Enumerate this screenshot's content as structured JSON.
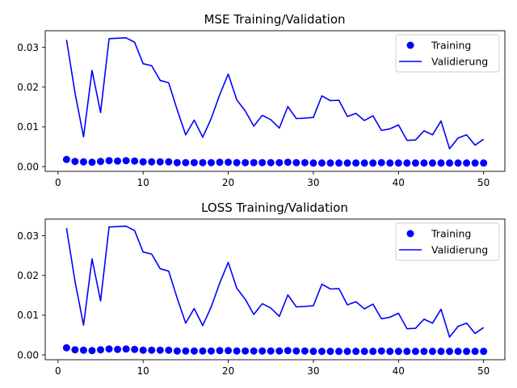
{
  "chart_data": [
    {
      "type": "line",
      "title": "MSE Training/Validation",
      "xlim": [
        -1.5,
        52.5
      ],
      "ylim": [
        -0.0012,
        0.0342
      ],
      "xticks": [
        0,
        10,
        20,
        30,
        40,
        50
      ],
      "yticks": [
        0.0,
        0.01,
        0.02,
        0.03
      ],
      "ytick_labels": [
        "0.00",
        "0.01",
        "0.02",
        "0.03"
      ],
      "legend_position": "top-right",
      "series": [
        {
          "name": "Training",
          "kind": "scatter",
          "color": "#0000ff",
          "x": [
            1,
            2,
            3,
            4,
            5,
            6,
            7,
            8,
            9,
            10,
            11,
            12,
            13,
            14,
            15,
            16,
            17,
            18,
            19,
            20,
            21,
            22,
            23,
            24,
            25,
            26,
            27,
            28,
            29,
            30,
            31,
            32,
            33,
            34,
            35,
            36,
            37,
            38,
            39,
            40,
            41,
            42,
            43,
            44,
            45,
            46,
            47,
            48,
            49,
            50
          ],
          "y": [
            0.0018,
            0.0013,
            0.0012,
            0.0011,
            0.0013,
            0.0015,
            0.0014,
            0.0015,
            0.0014,
            0.0012,
            0.0012,
            0.0012,
            0.0012,
            0.001,
            0.001,
            0.001,
            0.001,
            0.001,
            0.0011,
            0.0011,
            0.001,
            0.001,
            0.001,
            0.001,
            0.001,
            0.001,
            0.0011,
            0.001,
            0.001,
            0.0009,
            0.0009,
            0.0009,
            0.0009,
            0.0009,
            0.0009,
            0.0009,
            0.0009,
            0.001,
            0.0009,
            0.0009,
            0.0009,
            0.0009,
            0.0009,
            0.0009,
            0.0009,
            0.0009,
            0.0009,
            0.0009,
            0.0009,
            0.0009
          ]
        },
        {
          "name": "Validierung",
          "kind": "line",
          "color": "#0000ff",
          "x": [
            1,
            2,
            3,
            4,
            5,
            6,
            7,
            8,
            9,
            10,
            11,
            12,
            13,
            14,
            15,
            16,
            17,
            18,
            19,
            20,
            21,
            22,
            23,
            24,
            25,
            26,
            27,
            28,
            29,
            30,
            31,
            32,
            33,
            34,
            35,
            36,
            37,
            38,
            39,
            40,
            41,
            42,
            43,
            44,
            45,
            46,
            47,
            48,
            49,
            50
          ],
          "y": [
            0.0319,
            0.0185,
            0.0075,
            0.0242,
            0.0136,
            0.0322,
            0.0323,
            0.0324,
            0.0313,
            0.0259,
            0.0254,
            0.0217,
            0.0211,
            0.0143,
            0.008,
            0.0117,
            0.0074,
            0.0121,
            0.0181,
            0.0233,
            0.0168,
            0.014,
            0.0102,
            0.0129,
            0.0118,
            0.0097,
            0.0151,
            0.0121,
            0.0122,
            0.0124,
            0.0178,
            0.0166,
            0.0167,
            0.0126,
            0.0134,
            0.0116,
            0.0128,
            0.0091,
            0.0095,
            0.0105,
            0.0066,
            0.0067,
            0.009,
            0.008,
            0.0115,
            0.0045,
            0.0072,
            0.008,
            0.0054,
            0.0069
          ]
        }
      ]
    },
    {
      "type": "line",
      "title": "LOSS Training/Validation",
      "xlim": [
        -1.5,
        52.5
      ],
      "ylim": [
        -0.0012,
        0.0342
      ],
      "xticks": [
        0,
        10,
        20,
        30,
        40,
        50
      ],
      "yticks": [
        0.0,
        0.01,
        0.02,
        0.03
      ],
      "ytick_labels": [
        "0.00",
        "0.01",
        "0.02",
        "0.03"
      ],
      "legend_position": "top-right",
      "series": [
        {
          "name": "Training",
          "kind": "scatter",
          "color": "#0000ff",
          "x": [
            1,
            2,
            3,
            4,
            5,
            6,
            7,
            8,
            9,
            10,
            11,
            12,
            13,
            14,
            15,
            16,
            17,
            18,
            19,
            20,
            21,
            22,
            23,
            24,
            25,
            26,
            27,
            28,
            29,
            30,
            31,
            32,
            33,
            34,
            35,
            36,
            37,
            38,
            39,
            40,
            41,
            42,
            43,
            44,
            45,
            46,
            47,
            48,
            49,
            50
          ],
          "y": [
            0.0018,
            0.0013,
            0.0012,
            0.0011,
            0.0013,
            0.0015,
            0.0014,
            0.0015,
            0.0014,
            0.0012,
            0.0012,
            0.0012,
            0.0012,
            0.001,
            0.001,
            0.001,
            0.001,
            0.001,
            0.0011,
            0.0011,
            0.001,
            0.001,
            0.001,
            0.001,
            0.001,
            0.001,
            0.0011,
            0.001,
            0.001,
            0.0009,
            0.0009,
            0.0009,
            0.0009,
            0.0009,
            0.0009,
            0.0009,
            0.0009,
            0.001,
            0.0009,
            0.0009,
            0.0009,
            0.0009,
            0.0009,
            0.0009,
            0.0009,
            0.0009,
            0.0009,
            0.0009,
            0.0009,
            0.0009
          ]
        },
        {
          "name": "Validierung",
          "kind": "line",
          "color": "#0000ff",
          "x": [
            1,
            2,
            3,
            4,
            5,
            6,
            7,
            8,
            9,
            10,
            11,
            12,
            13,
            14,
            15,
            16,
            17,
            18,
            19,
            20,
            21,
            22,
            23,
            24,
            25,
            26,
            27,
            28,
            29,
            30,
            31,
            32,
            33,
            34,
            35,
            36,
            37,
            38,
            39,
            40,
            41,
            42,
            43,
            44,
            45,
            46,
            47,
            48,
            49,
            50
          ],
          "y": [
            0.0319,
            0.0185,
            0.0075,
            0.0242,
            0.0136,
            0.0322,
            0.0323,
            0.0324,
            0.0313,
            0.0259,
            0.0254,
            0.0217,
            0.0211,
            0.0143,
            0.008,
            0.0117,
            0.0074,
            0.0121,
            0.0181,
            0.0233,
            0.0168,
            0.014,
            0.0102,
            0.0129,
            0.0118,
            0.0097,
            0.0151,
            0.0121,
            0.0122,
            0.0124,
            0.0178,
            0.0166,
            0.0167,
            0.0126,
            0.0134,
            0.0116,
            0.0128,
            0.0091,
            0.0095,
            0.0105,
            0.0066,
            0.0067,
            0.009,
            0.008,
            0.0115,
            0.0045,
            0.0072,
            0.008,
            0.0054,
            0.0069
          ]
        }
      ]
    }
  ]
}
